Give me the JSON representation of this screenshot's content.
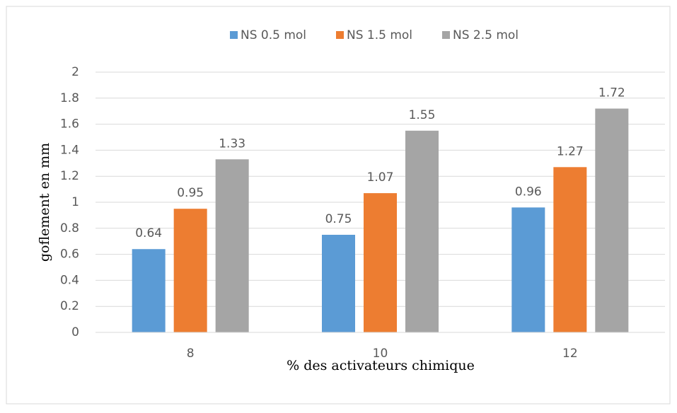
{
  "chart_data": {
    "type": "bar",
    "categories": [
      "8",
      "10",
      "12"
    ],
    "series": [
      {
        "name": "NS 0.5 mol",
        "color": "#5b9bd5",
        "values": [
          0.64,
          0.75,
          0.96
        ]
      },
      {
        "name": "NS 1.5 mol",
        "color": "#ed7d31",
        "values": [
          0.95,
          1.07,
          1.27
        ]
      },
      {
        "name": "NS 2.5 mol",
        "color": "#a5a5a5",
        "values": [
          1.33,
          1.55,
          1.72
        ]
      }
    ],
    "x_label": "% des activateurs chimique",
    "y_label": "goflement en mm",
    "ylim": [
      0,
      2
    ],
    "yticks": [
      0,
      0.2,
      0.4,
      0.6,
      0.8,
      1,
      1.2,
      1.4,
      1.6,
      1.8,
      2
    ],
    "grid": true,
    "legend": "top"
  }
}
